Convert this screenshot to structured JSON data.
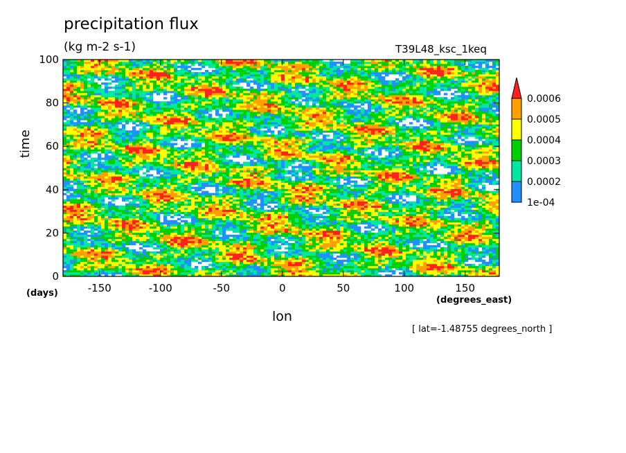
{
  "chart_data": {
    "type": "heatmap",
    "title": "precipitation flux",
    "subtitle": "(kg m-2 s-1)",
    "run_label": "T39L48_ksc_1keq",
    "xlabel": "lon",
    "ylabel": "time",
    "x_unit": "(degrees_east)",
    "y_unit": "(days)",
    "footer": "[ lat=-1.48755 degrees_north ]",
    "xlim": [
      -180,
      178
    ],
    "ylim": [
      0,
      100
    ],
    "xticks": [
      -150,
      -100,
      -50,
      0,
      50,
      100,
      150
    ],
    "yticks": [
      0,
      20,
      40,
      60,
      80,
      100
    ],
    "xtick_labels": [
      "-150",
      "-100",
      "-50",
      "0",
      "50",
      "100",
      "150"
    ],
    "ytick_labels": [
      "0",
      "20",
      "40",
      "60",
      "80",
      "100"
    ],
    "colorbar": {
      "levels": [
        0.0001,
        0.0002,
        0.0003,
        0.0004,
        0.0005,
        0.0006
      ],
      "labels": [
        "1e-04",
        "0.0002",
        "0.0003",
        "0.0004",
        "0.0005",
        "0.0006"
      ],
      "colors": [
        "#1e90ff",
        "#00e8a0",
        "#00d000",
        "#ffff00",
        "#ffa000",
        "#ff2020"
      ],
      "extend": "max"
    },
    "grid": false
  }
}
